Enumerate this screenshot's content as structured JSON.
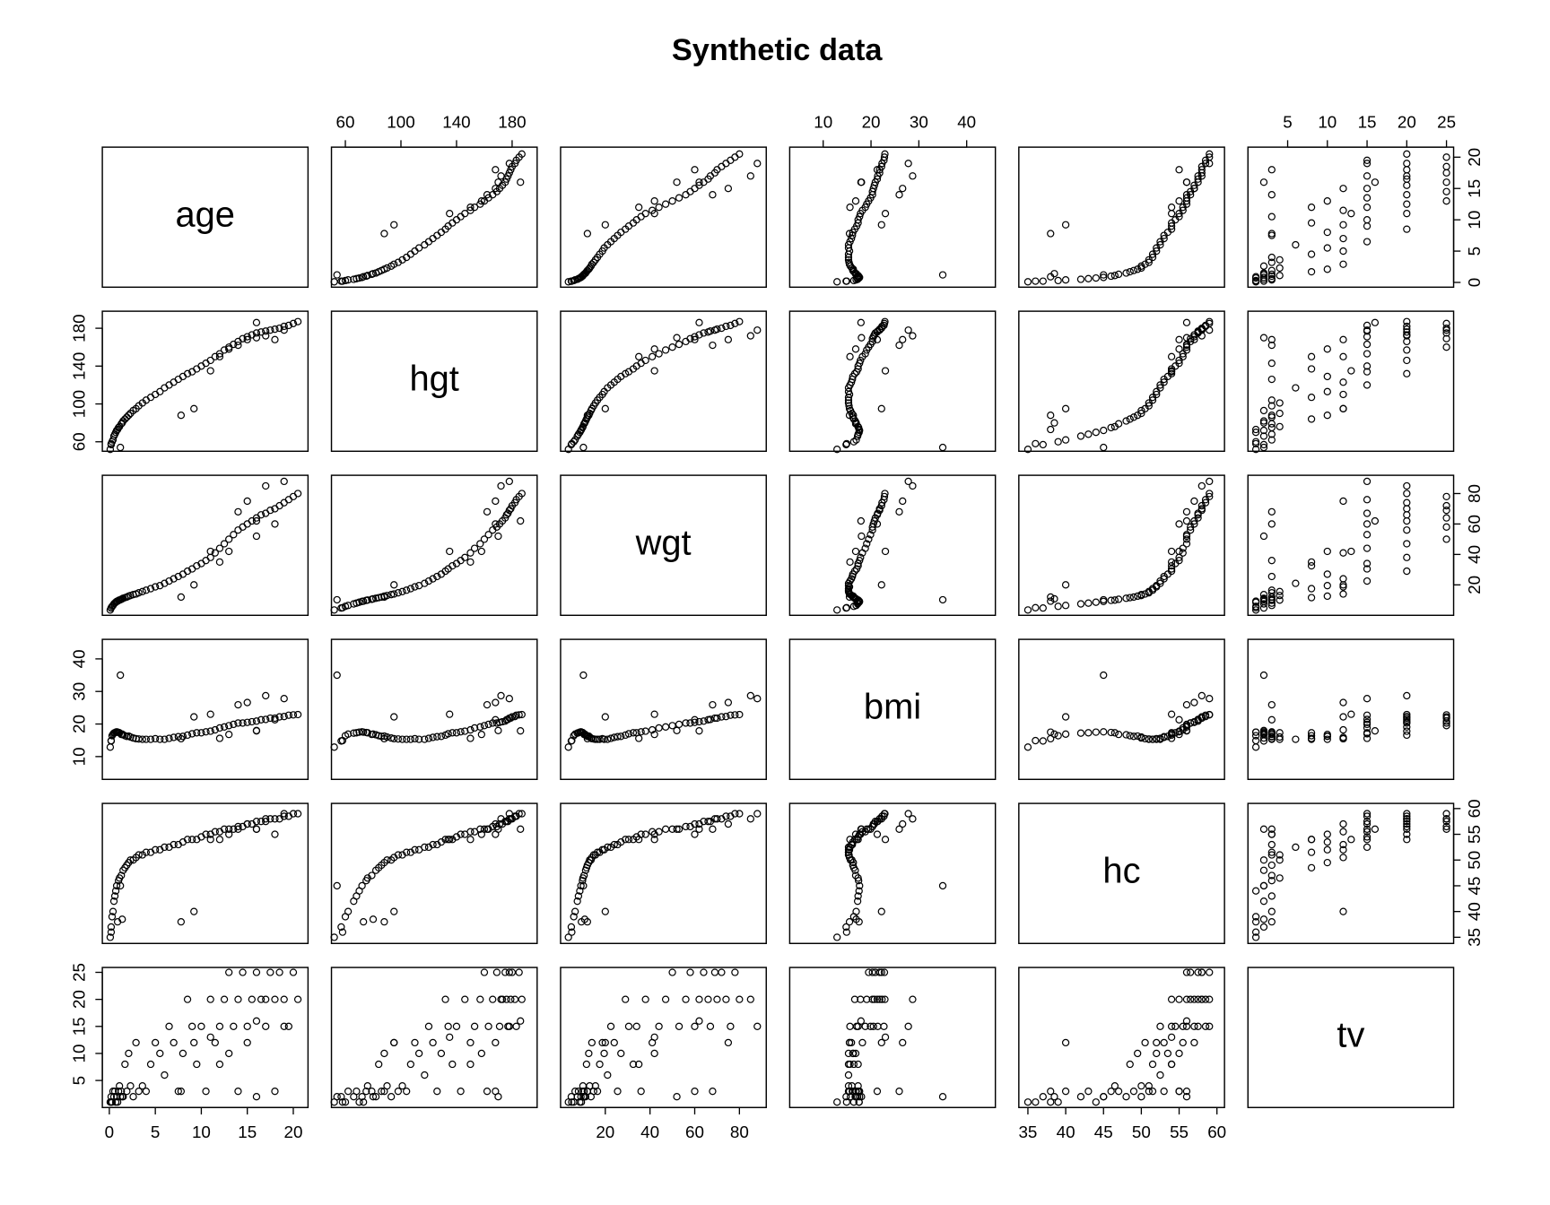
{
  "chart_data": {
    "type": "scatter",
    "title": "Synthetic data",
    "point_color": "#000000",
    "variables": [
      {
        "name": "age",
        "lim": [
          -0.76,
          21.6
        ],
        "ticks": [
          0,
          5,
          10,
          15,
          20
        ],
        "values": [
          0.1,
          0.2,
          0.3,
          0.5,
          0.6,
          0.8,
          1.0,
          1.1,
          1.3,
          1.5,
          1.7,
          1.9,
          2.1,
          2.3,
          2.6,
          2.9,
          0.4,
          0.7,
          1.2,
          0.9,
          3.2,
          3.6,
          1.4,
          0.2,
          4.0,
          4.5,
          5.0,
          5.5,
          6.0,
          6.5,
          7.0,
          7.5,
          8.0,
          8.5,
          9.0,
          9.5,
          7.8,
          9.2,
          10,
          10.5,
          11,
          11.5,
          12,
          12.5,
          13,
          13.5,
          14,
          14.5,
          15,
          15.5,
          16,
          16.5,
          17,
          17.5,
          18,
          18.5,
          19,
          19.5,
          20,
          20.5,
          12,
          13,
          14,
          15,
          16,
          17,
          18,
          19,
          11,
          16
        ]
      },
      {
        "name": "hgt",
        "lim": [
          50,
          198
        ],
        "ticks": [
          60,
          100,
          140,
          180
        ],
        "values": [
          52,
          57,
          60,
          66,
          68,
          72,
          75,
          76,
          79,
          82,
          84,
          86,
          88,
          90,
          93,
          95,
          62,
          70,
          54,
          73,
          98,
          101,
          80,
          58,
          104,
          107,
          110,
          113,
          117,
          120,
          123,
          126,
          129,
          132,
          134,
          137,
          88,
          95,
          140,
          143,
          146,
          150,
          153,
          157,
          160,
          163,
          166,
          169,
          171,
          173,
          175,
          176,
          177,
          178,
          179,
          180,
          182,
          183,
          185,
          187,
          150,
          158,
          162,
          168,
          170,
          172,
          168,
          178,
          135,
          186
        ]
      },
      {
        "name": "wgt",
        "lim": [
          0,
          92
        ],
        "ticks": [
          20,
          40,
          60,
          80
        ],
        "values": [
          3.5,
          4.8,
          5.9,
          7.5,
          8.0,
          9.1,
          9.8,
          10.0,
          10.5,
          11.2,
          11.6,
          12.0,
          12.6,
          13.0,
          13.6,
          14.0,
          6.5,
          8.6,
          10.2,
          9.3,
          14.8,
          15.6,
          10.8,
          5.0,
          16.5,
          17.5,
          18.7,
          19.5,
          21.0,
          22.5,
          24.0,
          25.5,
          27.0,
          29.0,
          30.5,
          32.5,
          12.0,
          20.0,
          34,
          36,
          38,
          41,
          44,
          47,
          50,
          53,
          56,
          58,
          60,
          62,
          64,
          66,
          67,
          69,
          70,
          72,
          74,
          76,
          78,
          80,
          35,
          42,
          68,
          75,
          52,
          85,
          60,
          88,
          42,
          62
        ]
      },
      {
        "name": "bmi",
        "lim": [
          3,
          46
        ],
        "ticks": [
          10,
          20,
          30,
          40
        ],
        "values": [
          12.9,
          14.8,
          16.4,
          17.2,
          17.3,
          17.6,
          17.4,
          17.3,
          16.8,
          16.7,
          16.4,
          16.2,
          16.3,
          16.0,
          15.7,
          15.5,
          16.9,
          17.5,
          35.0,
          17.5,
          15.4,
          15.3,
          16.9,
          14.9,
          15.3,
          15.3,
          15.5,
          15.3,
          15.3,
          15.6,
          15.9,
          16.1,
          16.2,
          16.6,
          17.0,
          17.3,
          15.5,
          22.2,
          17.3,
          17.6,
          17.8,
          18.2,
          18.8,
          19.1,
          19.5,
          19.9,
          20.3,
          20.3,
          20.5,
          20.7,
          20.9,
          21.3,
          21.4,
          21.8,
          21.8,
          22.2,
          22.3,
          22.7,
          22.8,
          22.9,
          15.6,
          16.8,
          25.9,
          26.6,
          18.0,
          28.7,
          21.3,
          27.8,
          23.0,
          17.9
        ]
      },
      {
        "name": "hc",
        "lim": [
          33.8,
          61
        ],
        "ticks": [
          35,
          40,
          45,
          50,
          55,
          60
        ],
        "values": [
          35,
          37,
          39,
          42,
          43,
          45,
          46,
          46.5,
          47,
          48,
          48.5,
          49,
          49.5,
          50,
          50,
          50.5,
          40,
          44,
          45,
          38,
          51,
          51,
          38.5,
          36,
          51.5,
          51.5,
          52,
          52,
          52.5,
          52.5,
          53,
          53,
          53.5,
          54,
          54,
          54,
          38,
          40,
          54.5,
          55,
          55,
          55.5,
          55.5,
          56,
          56,
          56,
          56.5,
          56.5,
          57,
          57,
          57.5,
          57.5,
          57.5,
          58,
          58,
          58,
          58.5,
          58.5,
          59,
          59,
          54,
          55,
          56,
          57,
          56,
          58,
          55,
          59,
          54,
          56
        ]
      },
      {
        "name": "tv",
        "lim": [
          0,
          25.9
        ],
        "ticks": [
          5,
          10,
          15,
          20,
          25
        ],
        "values": [
          1,
          2,
          1,
          2,
          3,
          2,
          3,
          4,
          3,
          2,
          8,
          3,
          10,
          4,
          2,
          12,
          3,
          1,
          2,
          1,
          3,
          4,
          2,
          1,
          3,
          8,
          12,
          10,
          6,
          15,
          12,
          3,
          10,
          20,
          15,
          8,
          3,
          12,
          15,
          3,
          20,
          12,
          15,
          20,
          25,
          15,
          20,
          25,
          15,
          20,
          25,
          20,
          15,
          25,
          20,
          25,
          20,
          15,
          25,
          20,
          8,
          10,
          3,
          12,
          2,
          20,
          3,
          15,
          13,
          16
        ]
      }
    ]
  }
}
